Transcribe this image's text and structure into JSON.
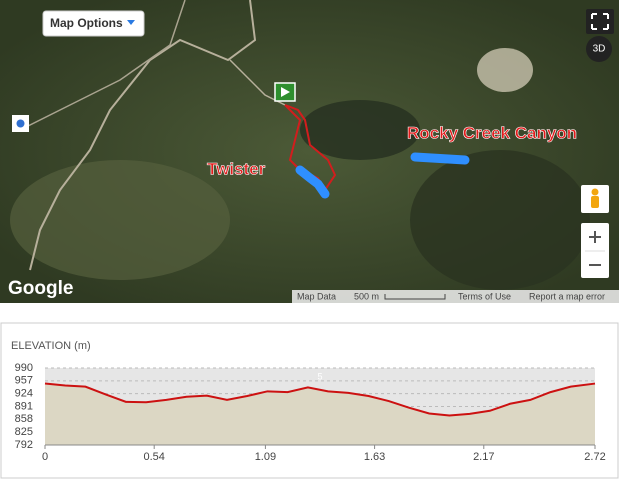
{
  "map": {
    "menu_button": "Map Options",
    "view_3d": "3D",
    "trail_labels": [
      "Twister",
      "Rocky Creek Canyon"
    ],
    "logo": "Google",
    "footer": [
      "Map Data",
      "500 m",
      "Terms of Use",
      "Report a map error"
    ]
  },
  "chart_data": {
    "type": "line",
    "title": "ELEVATION (m)",
    "x": [
      0,
      0.1,
      0.2,
      0.3,
      0.4,
      0.5,
      0.6,
      0.7,
      0.8,
      0.9,
      1.0,
      1.1,
      1.2,
      1.3,
      1.4,
      1.5,
      1.6,
      1.7,
      1.8,
      1.9,
      2.0,
      2.1,
      2.2,
      2.3,
      2.4,
      2.5,
      2.6,
      2.72
    ],
    "series": [
      {
        "name": "Elevation",
        "color": "#cc1111",
        "values": [
          950,
          945,
          942,
          922,
          903,
          902,
          908,
          916,
          919,
          908,
          918,
          930,
          928,
          940,
          930,
          926,
          918,
          905,
          888,
          873,
          868,
          872,
          880,
          898,
          908,
          928,
          942,
          950
        ]
      }
    ],
    "xlim": [
      0,
      2.72
    ],
    "xticks": [
      0,
      0.54,
      1.09,
      1.63,
      2.17,
      2.72
    ],
    "ylim": [
      792,
      990
    ],
    "yticks": [
      990,
      957,
      924,
      891,
      858,
      825,
      792
    ],
    "grid": true,
    "annotations": [
      {
        "x": 1.36,
        "label": "5"
      }
    ]
  }
}
